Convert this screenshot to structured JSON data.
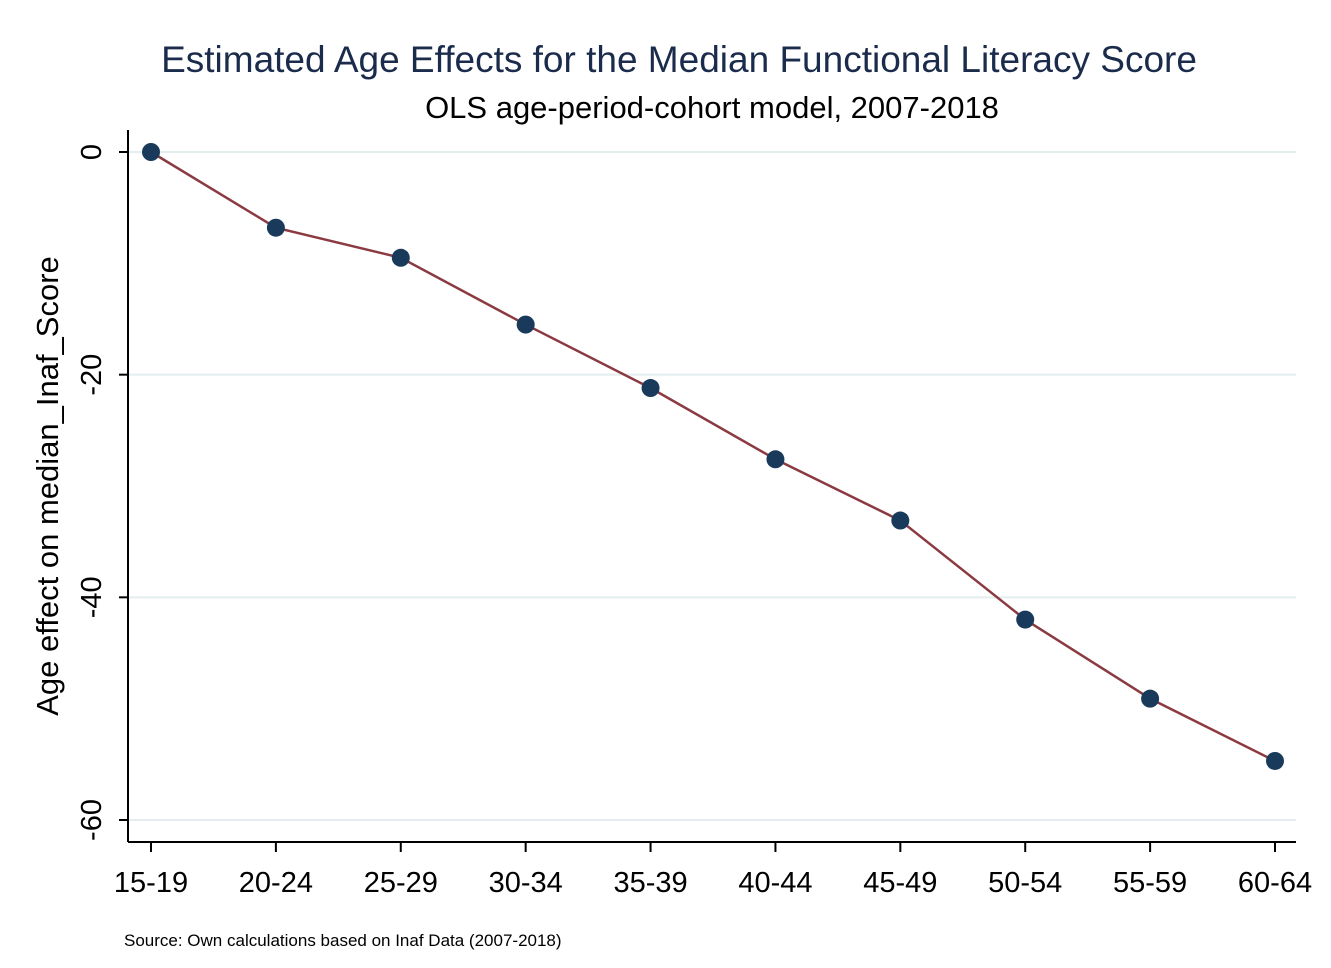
{
  "chart_data": {
    "type": "line",
    "title": "Estimated Age Effects for the Median Functional Literacy Score",
    "subtitle": "OLS age-period-cohort model, 2007-2018",
    "xlabel": "",
    "ylabel": "Age effect on median_Inaf_Score",
    "categories": [
      "15-19",
      "20-24",
      "25-29",
      "30-34",
      "35-39",
      "40-44",
      "45-49",
      "50-54",
      "55-59",
      "60-64"
    ],
    "series": [
      {
        "values": [
          0,
          -6.8,
          -9.5,
          -15.5,
          -21.2,
          -27.6,
          -33.1,
          -42.0,
          -49.1,
          -54.7
        ]
      }
    ],
    "ylim": [
      -60,
      0
    ],
    "yticks": [
      0,
      -20,
      -40,
      -60
    ],
    "grid": true,
    "note": "Source: Own calculations based on Inaf Data (2007-2018)",
    "colors": {
      "line": "#8b3a42",
      "marker": "#1a3a5c",
      "grid": "#e4eeee",
      "title": "#1a2b4c"
    }
  }
}
